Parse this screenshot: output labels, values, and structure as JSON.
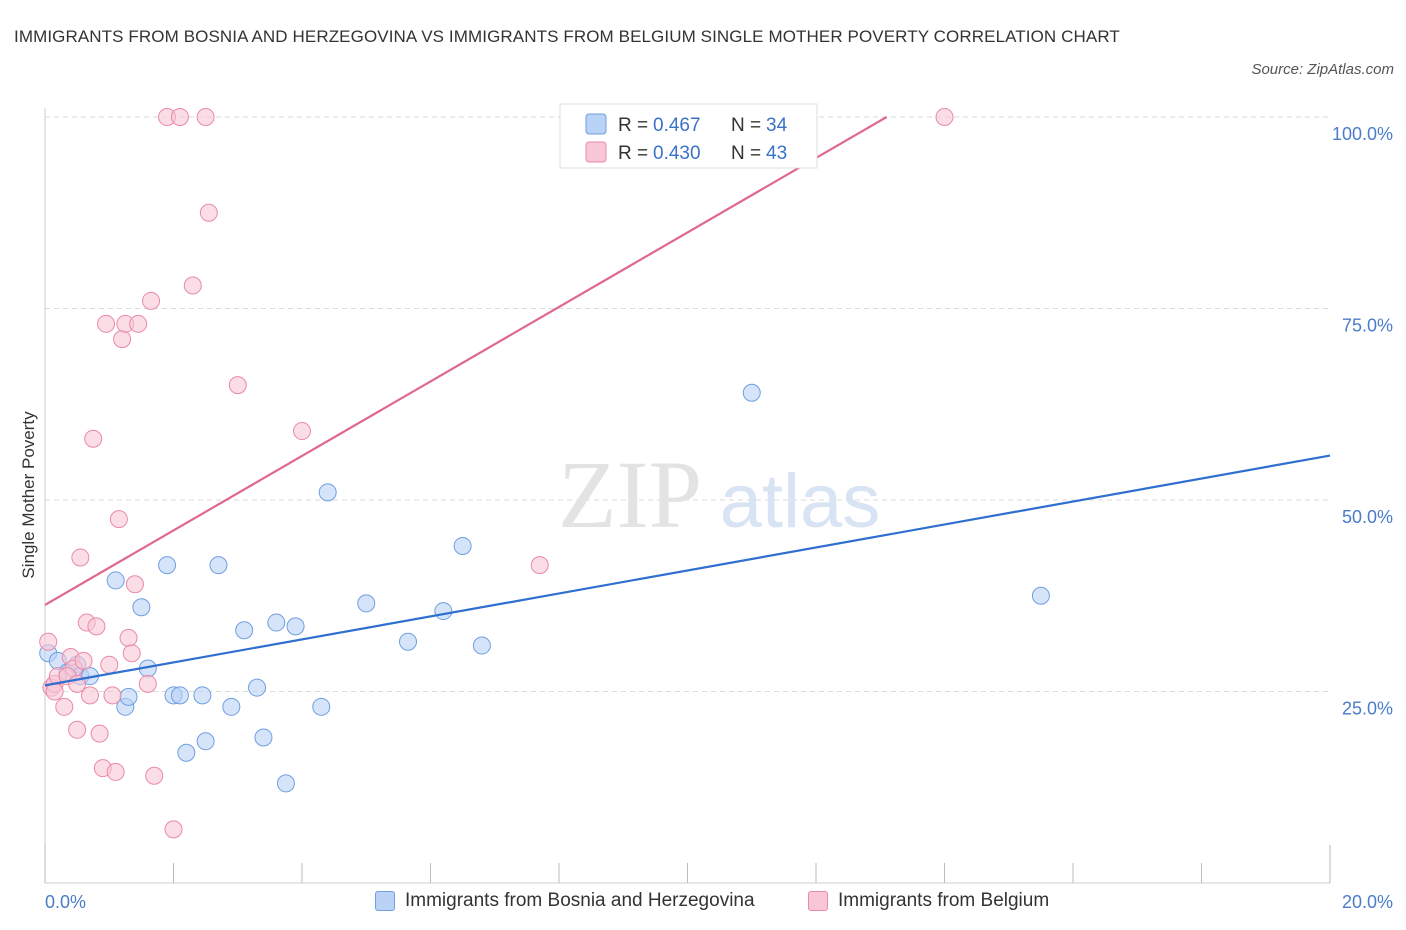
{
  "title": "IMMIGRANTS FROM BOSNIA AND HERZEGOVINA VS IMMIGRANTS FROM BELGIUM SINGLE MOTHER POVERTY CORRELATION CHART",
  "source": "Source: ZipAtlas.com",
  "watermark": {
    "zip": "ZIP",
    "atlas": "atlas"
  },
  "colors": {
    "blue_fill": "#b9d2f5",
    "blue_stroke": "#6f9fe0",
    "blue_line": "#2f6fcf",
    "pink_fill": "#f8c6d6",
    "pink_stroke": "#e98aaa",
    "pink_line": "#e06890",
    "grid": "#d9d9d9",
    "tick_label": "#4a7cc9"
  },
  "legend": {
    "rows": [
      {
        "r_label": "R = ",
        "r_value": "0.467",
        "n_label": "N = ",
        "n_value": "34"
      },
      {
        "r_label": "R = ",
        "r_value": "0.430",
        "n_label": "N = ",
        "n_value": "43"
      }
    ]
  },
  "chart_data": {
    "type": "scatter",
    "ylabel": "Single Mother Poverty",
    "xlim": [
      0,
      20
    ],
    "ylim": [
      0,
      100
    ],
    "x_tick_labels": [
      {
        "value": 0,
        "label": "0.0%"
      },
      {
        "value": 20,
        "label": "20.0%"
      }
    ],
    "y_tick_labels": [
      {
        "value": 100,
        "label": "100.0%"
      },
      {
        "value": 75,
        "label": "75.0%"
      },
      {
        "value": 50,
        "label": "50.0%"
      },
      {
        "value": 25,
        "label": "25.0%"
      }
    ],
    "gridlines_y": [
      100,
      75,
      50,
      25
    ],
    "legend_position": "top-center",
    "series": [
      {
        "name": "Immigrants from Bosnia and Herzegovina",
        "color": "#6f9fe0",
        "points": [
          [
            0.05,
            30.0
          ],
          [
            0.2,
            29.0
          ],
          [
            0.35,
            27.5
          ],
          [
            0.5,
            28.5
          ],
          [
            0.55,
            27.0
          ],
          [
            0.7,
            27.0
          ],
          [
            1.1,
            39.5
          ],
          [
            1.25,
            23.0
          ],
          [
            1.5,
            36.0
          ],
          [
            1.6,
            28.0
          ],
          [
            1.9,
            41.5
          ],
          [
            2.0,
            24.5
          ],
          [
            2.1,
            24.5
          ],
          [
            2.2,
            17.0
          ],
          [
            2.45,
            24.5
          ],
          [
            2.5,
            18.5
          ],
          [
            2.7,
            41.5
          ],
          [
            2.9,
            23.0
          ],
          [
            3.1,
            33.0
          ],
          [
            3.3,
            25.5
          ],
          [
            3.4,
            19.0
          ],
          [
            3.6,
            34.0
          ],
          [
            3.75,
            13.0
          ],
          [
            3.9,
            33.5
          ],
          [
            4.3,
            23.0
          ],
          [
            4.4,
            51.0
          ],
          [
            5.0,
            36.5
          ],
          [
            5.65,
            31.5
          ],
          [
            6.2,
            35.5
          ],
          [
            6.5,
            44.0
          ],
          [
            6.8,
            31.0
          ],
          [
            11.0,
            64.0
          ],
          [
            15.5,
            37.5
          ],
          [
            1.3,
            24.3
          ]
        ],
        "trend": {
          "x": [
            0,
            20
          ],
          "y": [
            25.8,
            55.8
          ]
        }
      },
      {
        "name": "Immigrants from Belgium",
        "color": "#e98aaa",
        "points": [
          [
            0.05,
            31.5
          ],
          [
            0.1,
            25.5
          ],
          [
            0.15,
            26.0
          ],
          [
            0.2,
            27.0
          ],
          [
            0.3,
            23.0
          ],
          [
            0.4,
            29.5
          ],
          [
            0.45,
            28.0
          ],
          [
            0.5,
            20.0
          ],
          [
            0.55,
            42.5
          ],
          [
            0.6,
            29.0
          ],
          [
            0.65,
            34.0
          ],
          [
            0.7,
            24.5
          ],
          [
            0.75,
            58.0
          ],
          [
            0.8,
            33.5
          ],
          [
            0.85,
            19.5
          ],
          [
            0.9,
            15.0
          ],
          [
            0.95,
            73.0
          ],
          [
            1.0,
            28.5
          ],
          [
            1.05,
            24.5
          ],
          [
            1.1,
            14.5
          ],
          [
            1.15,
            47.5
          ],
          [
            1.2,
            71.0
          ],
          [
            1.25,
            73.0
          ],
          [
            1.3,
            32.0
          ],
          [
            1.35,
            30.0
          ],
          [
            1.4,
            39.0
          ],
          [
            1.45,
            73.0
          ],
          [
            1.6,
            26.0
          ],
          [
            1.65,
            76.0
          ],
          [
            1.7,
            14.0
          ],
          [
            1.9,
            100.0
          ],
          [
            2.0,
            7.0
          ],
          [
            2.1,
            100.0
          ],
          [
            2.3,
            78.0
          ],
          [
            2.5,
            100.0
          ],
          [
            2.55,
            87.5
          ],
          [
            3.0,
            65.0
          ],
          [
            4.0,
            59.0
          ],
          [
            7.7,
            41.5
          ],
          [
            14.0,
            100.0
          ],
          [
            0.15,
            25.0
          ],
          [
            0.35,
            27.0
          ],
          [
            0.5,
            26.0
          ]
        ],
        "trend": {
          "x": [
            0,
            13.1
          ],
          "y": [
            36.3,
            100.0
          ]
        }
      }
    ]
  },
  "bottom_legend": [
    {
      "label": "Immigrants from Bosnia and Herzegovina"
    },
    {
      "label": "Immigrants from Belgium"
    }
  ]
}
